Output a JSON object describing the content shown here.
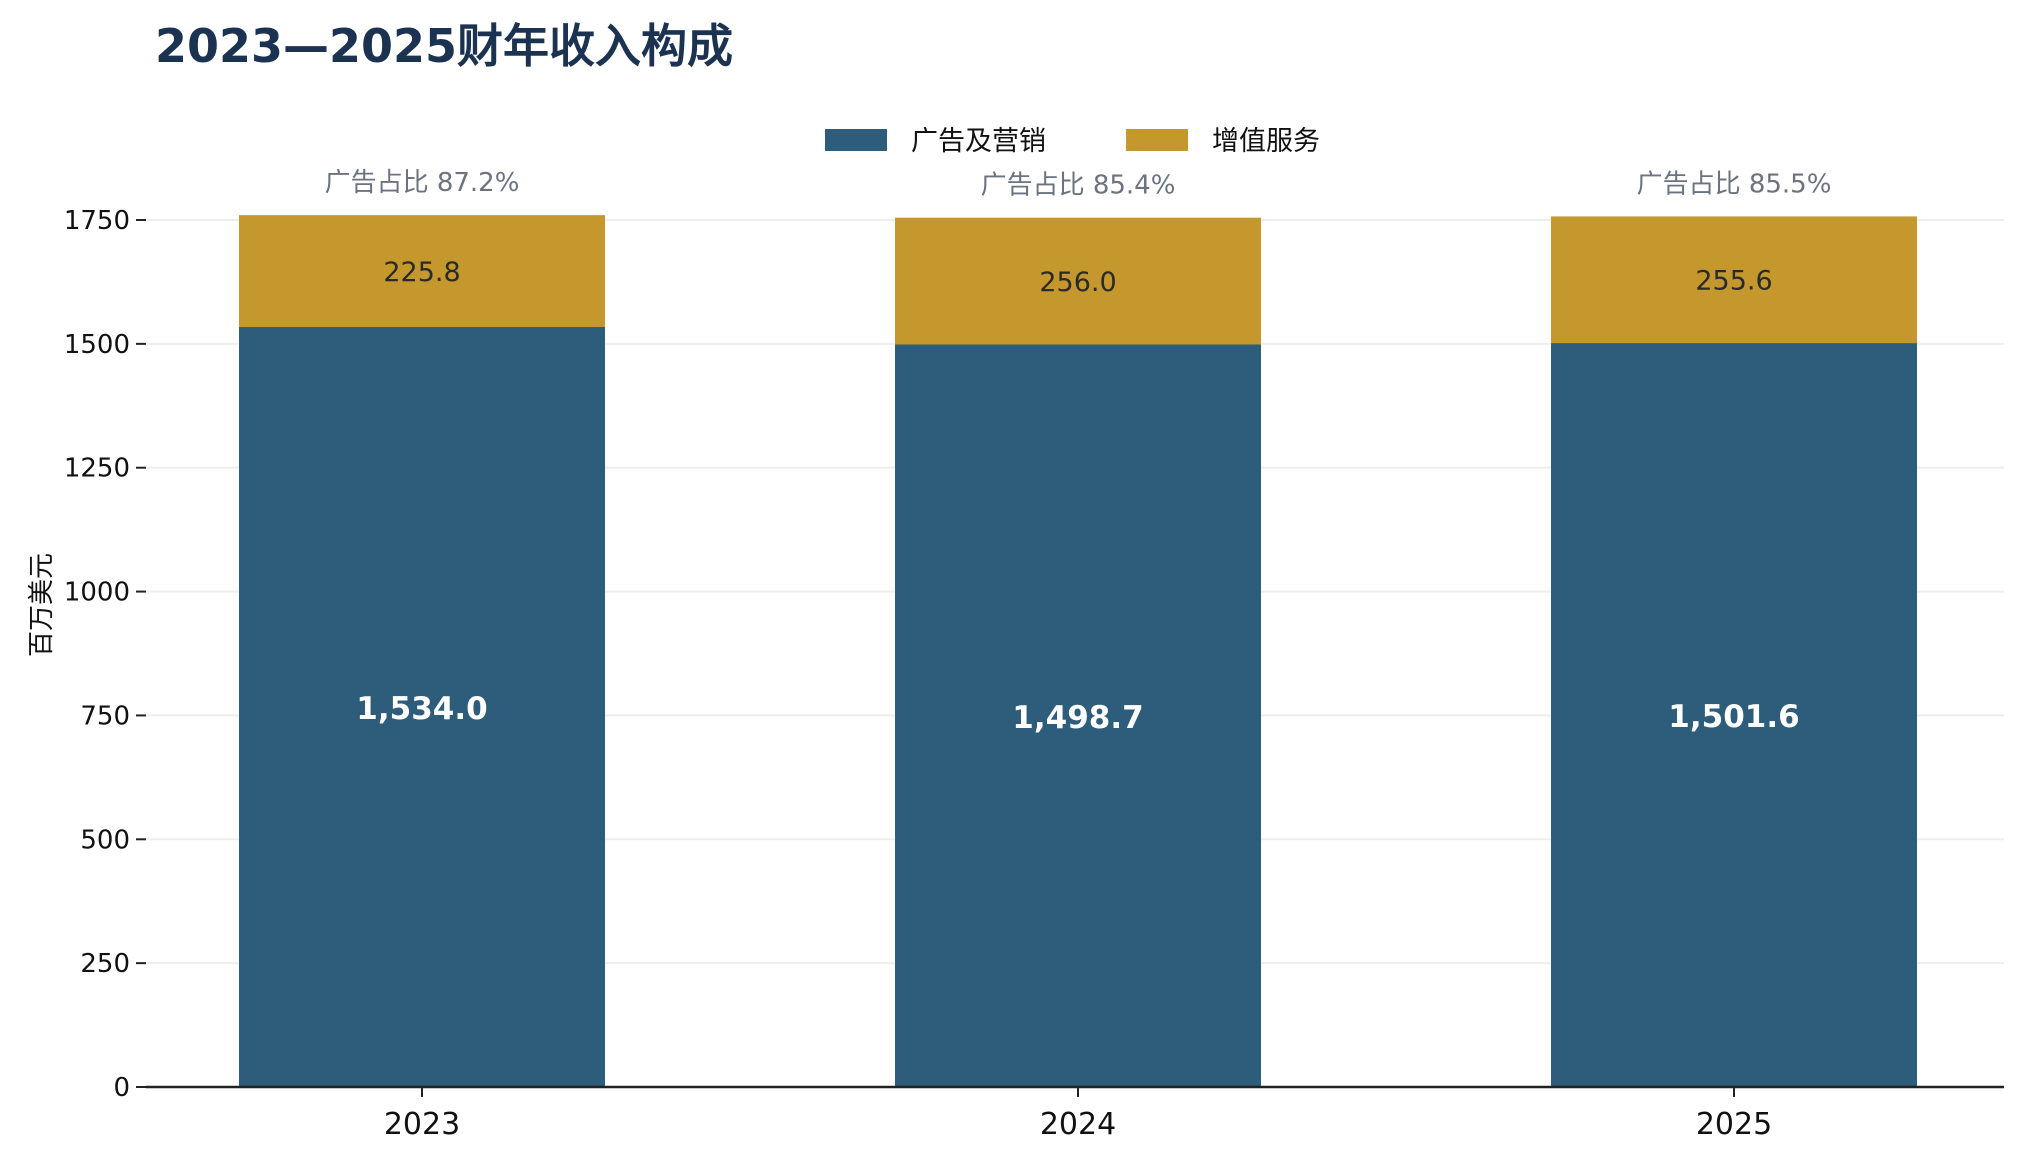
{
  "chart_data": {
    "type": "bar",
    "stacked": true,
    "title": "2023—2025财年收入构成",
    "ylabel": "百万美元",
    "xlabel": "",
    "categories": [
      "2023",
      "2024",
      "2025"
    ],
    "ylim": [
      0,
      1750
    ],
    "yticks": [
      0,
      250,
      500,
      750,
      1000,
      1250,
      1500,
      1750
    ],
    "ytick_labels": [
      "0",
      "250",
      "500",
      "750",
      "1000",
      "1250",
      "1500",
      "1750"
    ],
    "grid": "horizontal",
    "legend_position": "top-center",
    "series": [
      {
        "name": "广告及营销",
        "color": "#2e5c7b",
        "values": [
          1534.0,
          1498.7,
          1501.6
        ],
        "labels": [
          "1,534.0",
          "1,498.7",
          "1,501.6"
        ]
      },
      {
        "name": "增值服务",
        "color": "#c4982d",
        "values": [
          225.8,
          256.0,
          255.6
        ],
        "labels": [
          "225.8",
          "256.0",
          "255.6"
        ]
      }
    ],
    "annotations": [
      "广告占比 87.2%",
      "广告占比 85.4%",
      "广告占比 85.5%"
    ],
    "colors": {
      "title": "#1b3350",
      "annotation": "#6b7280",
      "grid": "#eeeeee",
      "axis": "#222222"
    }
  }
}
